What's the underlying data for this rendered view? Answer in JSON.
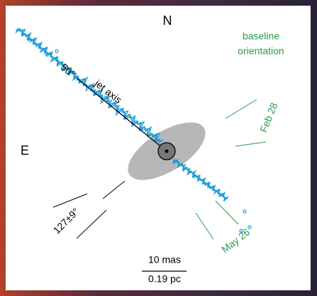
{
  "labels": {
    "north": "N",
    "east": "E",
    "baseline_line1": "baseline",
    "baseline_line2": "orientation",
    "feb": "Feb 28",
    "may": "May 26",
    "angle": "127±9°",
    "angle50": "50°",
    "jet_axis": "jet axis",
    "scale_mas": "10 mas",
    "scale_pc": "0.19 pc"
  }
}
